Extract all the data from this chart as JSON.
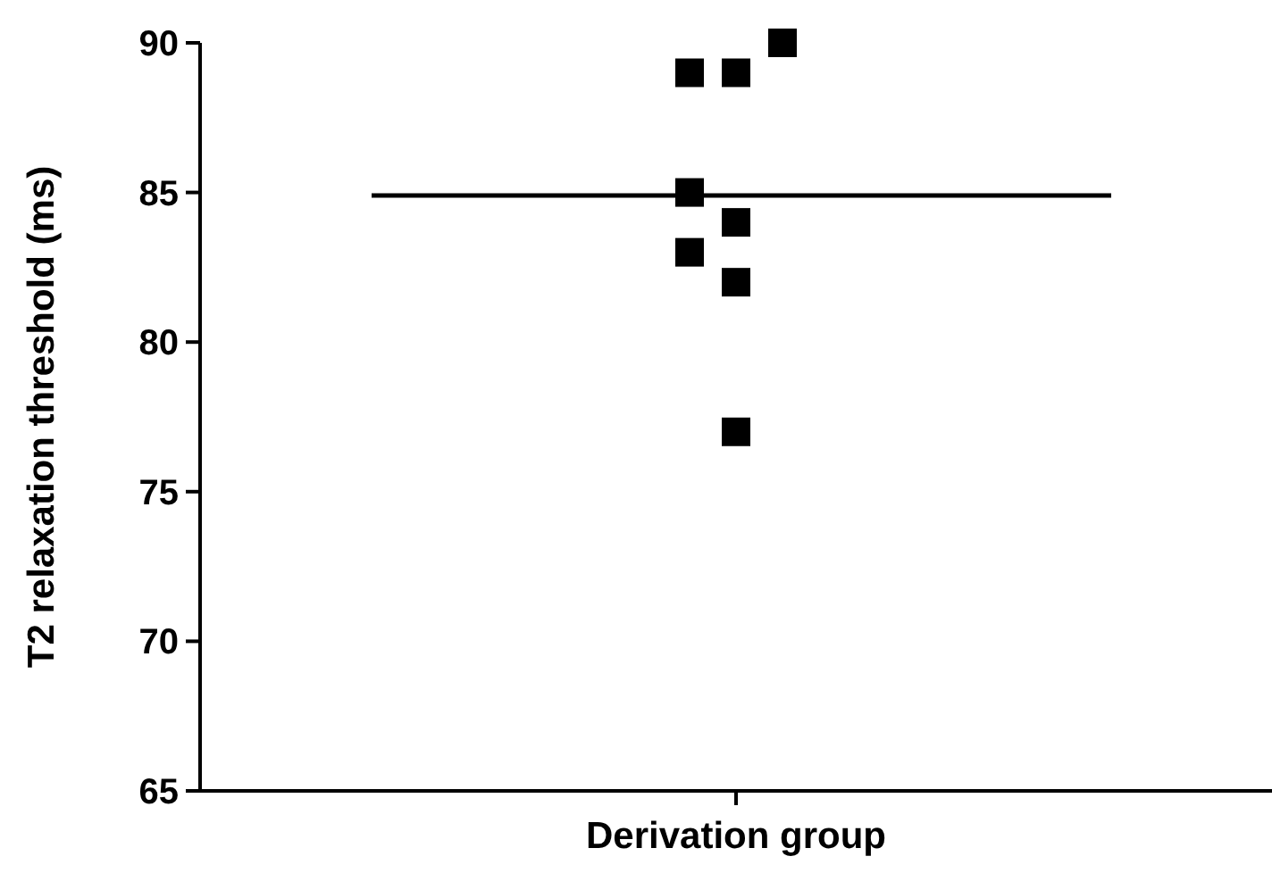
{
  "chart_data": {
    "type": "scatter",
    "ylabel": "T2 relaxation threshold (ms)",
    "categories": [
      "Derivation group"
    ],
    "series": [
      {
        "color": "#000000",
        "x": [
          "Derivation group",
          "Derivation group",
          "Derivation group",
          "Derivation group",
          "Derivation group",
          "Derivation group",
          "Derivation group",
          "Derivation group"
        ],
        "values": [
          89,
          89,
          90,
          85,
          84,
          83,
          82,
          77
        ]
      }
    ],
    "ylim": [
      65,
      90
    ],
    "yticks": [
      65,
      70,
      75,
      80,
      85,
      90
    ],
    "marker": "square",
    "grid": false,
    "ref_lines": [
      {
        "axis": "y",
        "value": 84.9,
        "color": "#000000"
      }
    ]
  }
}
